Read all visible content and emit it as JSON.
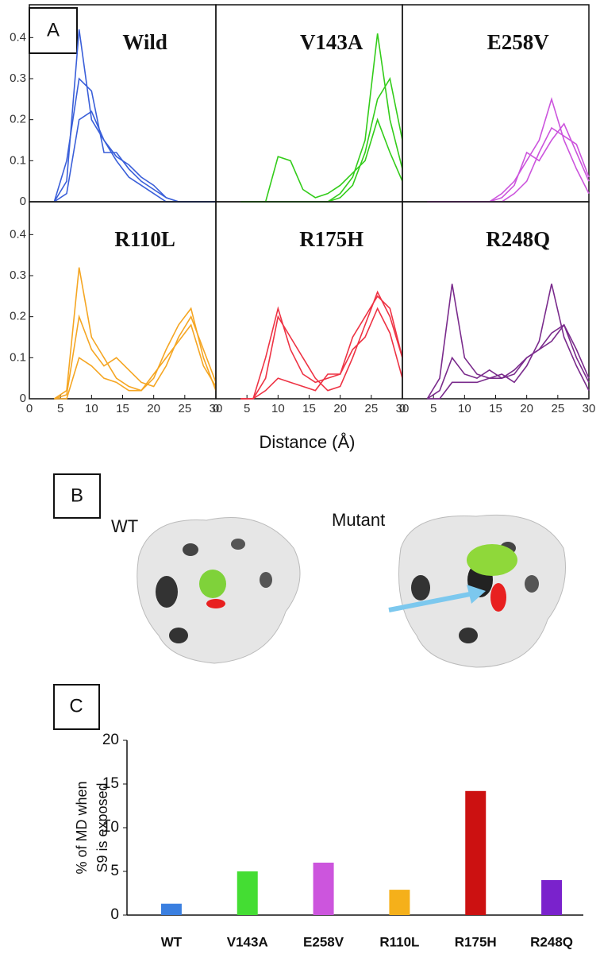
{
  "panel_labels": [
    "A",
    "B",
    "C"
  ],
  "x_label": "Distance (Å)",
  "structure_labels": [
    "WT",
    "Mutant"
  ],
  "chart_data": [
    {
      "type": "line",
      "title": "Wild",
      "x": [
        4,
        6,
        8,
        10,
        12,
        14,
        16,
        18,
        20,
        22,
        24,
        26,
        28,
        30
      ],
      "xlim": [
        0,
        30
      ],
      "ylim": [
        0,
        0.48
      ],
      "yticks": [
        0,
        0.1,
        0.2,
        0.3,
        0.4
      ],
      "series": [
        {
          "color": "#3a5fd9",
          "values": [
            0,
            0.05,
            0.42,
            0.2,
            0.15,
            0.1,
            0.06,
            0.04,
            0.02,
            0,
            0,
            0,
            0,
            0
          ]
        },
        {
          "color": "#3a5fd9",
          "values": [
            0,
            0.1,
            0.3,
            0.27,
            0.12,
            0.12,
            0.08,
            0.05,
            0.03,
            0.01,
            0,
            0,
            0,
            0
          ]
        },
        {
          "color": "#3a5fd9",
          "values": [
            0,
            0.02,
            0.2,
            0.22,
            0.15,
            0.11,
            0.09,
            0.06,
            0.04,
            0.01,
            0,
            0,
            0,
            0
          ]
        }
      ]
    },
    {
      "type": "line",
      "title": "V143A",
      "x": [
        4,
        6,
        8,
        10,
        12,
        14,
        16,
        18,
        20,
        22,
        24,
        26,
        28,
        30
      ],
      "xlim": [
        0,
        30
      ],
      "ylim": [
        0,
        0.48
      ],
      "series": [
        {
          "color": "#33cc1a",
          "values": [
            0,
            0,
            0,
            0.11,
            0.1,
            0.03,
            0.01,
            0.02,
            0.04,
            0.07,
            0.1,
            0.2,
            0.12,
            0.05
          ]
        },
        {
          "color": "#33cc1a",
          "values": [
            0,
            0,
            0,
            0,
            0,
            0,
            0,
            0,
            0.02,
            0.06,
            0.15,
            0.41,
            0.2,
            0.08
          ]
        },
        {
          "color": "#33cc1a",
          "values": [
            0,
            0,
            0,
            0,
            0,
            0,
            0,
            0,
            0.01,
            0.04,
            0.12,
            0.25,
            0.3,
            0.15
          ]
        }
      ]
    },
    {
      "type": "line",
      "title": "E258V",
      "x": [
        4,
        6,
        8,
        10,
        12,
        14,
        16,
        18,
        20,
        22,
        24,
        26,
        28,
        30
      ],
      "xlim": [
        0,
        30
      ],
      "ylim": [
        0,
        0.48
      ],
      "series": [
        {
          "color": "#cc55dd",
          "values": [
            0,
            0,
            0,
            0,
            0,
            0,
            0.02,
            0.05,
            0.1,
            0.15,
            0.25,
            0.15,
            0.08,
            0.02
          ]
        },
        {
          "color": "#cc55dd",
          "values": [
            0,
            0,
            0,
            0,
            0,
            0,
            0.01,
            0.04,
            0.12,
            0.1,
            0.15,
            0.19,
            0.12,
            0.05
          ]
        },
        {
          "color": "#cc55dd",
          "values": [
            0,
            0,
            0,
            0,
            0,
            0,
            0,
            0.02,
            0.05,
            0.12,
            0.18,
            0.16,
            0.14,
            0.06
          ]
        }
      ]
    },
    {
      "type": "line",
      "title": "R110L",
      "x": [
        4,
        6,
        8,
        10,
        12,
        14,
        16,
        18,
        20,
        22,
        24,
        26,
        28,
        30
      ],
      "xlim": [
        0,
        30
      ],
      "ylim": [
        0,
        0.48
      ],
      "yticks": [
        0,
        0.1,
        0.2,
        0.3,
        0.4
      ],
      "xticks": [
        0,
        5,
        10,
        15,
        20,
        25,
        30
      ],
      "series": [
        {
          "color": "#f5a623",
          "values": [
            0,
            0.02,
            0.32,
            0.15,
            0.1,
            0.05,
            0.03,
            0.02,
            0.05,
            0.12,
            0.18,
            0.22,
            0.1,
            0.02
          ]
        },
        {
          "color": "#f5a623",
          "values": [
            0,
            0.01,
            0.2,
            0.12,
            0.08,
            0.1,
            0.07,
            0.04,
            0.03,
            0.08,
            0.15,
            0.2,
            0.12,
            0.04
          ]
        },
        {
          "color": "#f5a623",
          "values": [
            0,
            0,
            0.1,
            0.08,
            0.05,
            0.04,
            0.02,
            0.02,
            0.06,
            0.1,
            0.14,
            0.18,
            0.08,
            0.03
          ]
        }
      ]
    },
    {
      "type": "line",
      "title": "R175H",
      "x": [
        4,
        6,
        8,
        10,
        12,
        14,
        16,
        18,
        20,
        22,
        24,
        26,
        28,
        30
      ],
      "xlim": [
        0,
        30
      ],
      "ylim": [
        0,
        0.48
      ],
      "xticks": [
        0,
        5,
        10,
        15,
        20,
        25,
        30
      ],
      "series": [
        {
          "color": "#ee3344",
          "values": [
            0,
            0,
            0.05,
            0.2,
            0.15,
            0.1,
            0.05,
            0.02,
            0.03,
            0.1,
            0.18,
            0.26,
            0.2,
            0.1
          ]
        },
        {
          "color": "#ee3344",
          "values": [
            0,
            0,
            0.1,
            0.22,
            0.12,
            0.06,
            0.04,
            0.05,
            0.06,
            0.15,
            0.2,
            0.25,
            0.22,
            0.1
          ]
        },
        {
          "color": "#ee3344",
          "values": [
            0,
            0,
            0.02,
            0.05,
            0.04,
            0.03,
            0.02,
            0.06,
            0.06,
            0.12,
            0.15,
            0.22,
            0.16,
            0.05
          ]
        }
      ]
    },
    {
      "type": "line",
      "title": "R248Q",
      "x": [
        4,
        6,
        8,
        10,
        12,
        14,
        16,
        18,
        20,
        22,
        24,
        26,
        28,
        30
      ],
      "xlim": [
        0,
        30
      ],
      "ylim": [
        0,
        0.48
      ],
      "xticks": [
        0,
        5,
        10,
        15,
        20,
        25,
        30
      ],
      "series": [
        {
          "color": "#7a2b8c",
          "values": [
            0,
            0.05,
            0.28,
            0.1,
            0.06,
            0.05,
            0.06,
            0.04,
            0.08,
            0.14,
            0.28,
            0.15,
            0.08,
            0.02
          ]
        },
        {
          "color": "#7a2b8c",
          "values": [
            0,
            0.02,
            0.1,
            0.06,
            0.05,
            0.07,
            0.05,
            0.06,
            0.1,
            0.12,
            0.16,
            0.18,
            0.1,
            0.04
          ]
        },
        {
          "color": "#7a2b8c",
          "values": [
            0,
            0,
            0.04,
            0.04,
            0.04,
            0.05,
            0.05,
            0.07,
            0.1,
            0.12,
            0.14,
            0.18,
            0.12,
            0.05
          ]
        }
      ]
    },
    {
      "type": "bar",
      "y_label": [
        "% of MD when",
        "S9 is exposed"
      ],
      "categories": [
        "WT",
        "V143A",
        "E258V",
        "R110L",
        "R175H",
        "R248Q"
      ],
      "values": [
        1.3,
        5,
        6,
        2.9,
        14.2,
        4
      ],
      "colors": [
        "#3a7fe0",
        "#44dd33",
        "#cc55dd",
        "#f5b01a",
        "#cc1111",
        "#7a22cc"
      ],
      "ylim": [
        0,
        20
      ],
      "yticks": [
        0,
        5,
        10,
        15,
        20
      ]
    }
  ]
}
